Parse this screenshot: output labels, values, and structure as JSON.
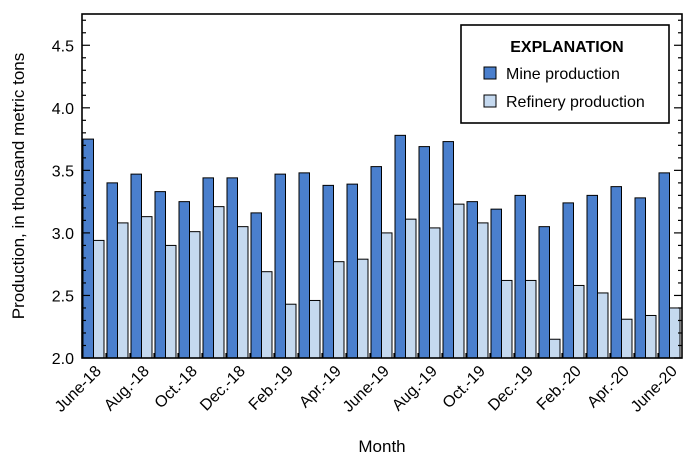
{
  "chart_data": {
    "type": "bar",
    "xlabel": "Month",
    "ylabel": "Production, in thousand metric tons",
    "ylim": [
      2.0,
      4.75
    ],
    "yticks": [
      "2.0",
      "2.5",
      "3.0",
      "3.5",
      "4.0",
      "4.5"
    ],
    "grid": false,
    "legend": {
      "title": "EXPLANATION",
      "placement": "top-right"
    },
    "categories": [
      "June-18",
      "July-18",
      "Aug.-18",
      "Sept.-18",
      "Oct.-18",
      "Nov.-18",
      "Dec.-18",
      "Jan.-19",
      "Feb.-19",
      "Mar.-19",
      "Apr.-19",
      "May-19",
      "June-19",
      "July-19",
      "Aug.-19",
      "Sept.-19",
      "Oct.-19",
      "Nov.-19",
      "Dec.-19",
      "Jan.-20",
      "Feb.-20",
      "Mar.-20",
      "Apr.-20",
      "May-20",
      "June-20"
    ],
    "xtick_labels": [
      "June-18",
      "Aug.-18",
      "Oct.-18",
      "Dec.-18",
      "Feb.-19",
      "Apr.-19",
      "June-19",
      "Aug.-19",
      "Oct.-19",
      "Dec.-19",
      "Feb.-20",
      "Apr.-20",
      "June-20"
    ],
    "series": [
      {
        "name": "Mine production",
        "color": "#4a7fcd",
        "values": [
          3.75,
          3.4,
          3.47,
          3.33,
          3.25,
          3.44,
          3.44,
          3.16,
          3.47,
          3.48,
          3.38,
          3.39,
          3.53,
          3.78,
          3.69,
          3.73,
          3.25,
          3.19,
          3.3,
          3.05,
          3.24,
          3.3,
          3.37,
          3.28,
          3.48
        ]
      },
      {
        "name": "Refinery production",
        "color": "#c5d9ef",
        "values": [
          2.94,
          3.08,
          3.13,
          2.9,
          3.01,
          3.21,
          3.05,
          2.69,
          2.43,
          2.46,
          2.77,
          2.79,
          3.0,
          3.11,
          3.04,
          3.23,
          3.08,
          2.62,
          2.62,
          2.15,
          2.58,
          2.52,
          2.31,
          2.34,
          2.4
        ]
      }
    ]
  }
}
